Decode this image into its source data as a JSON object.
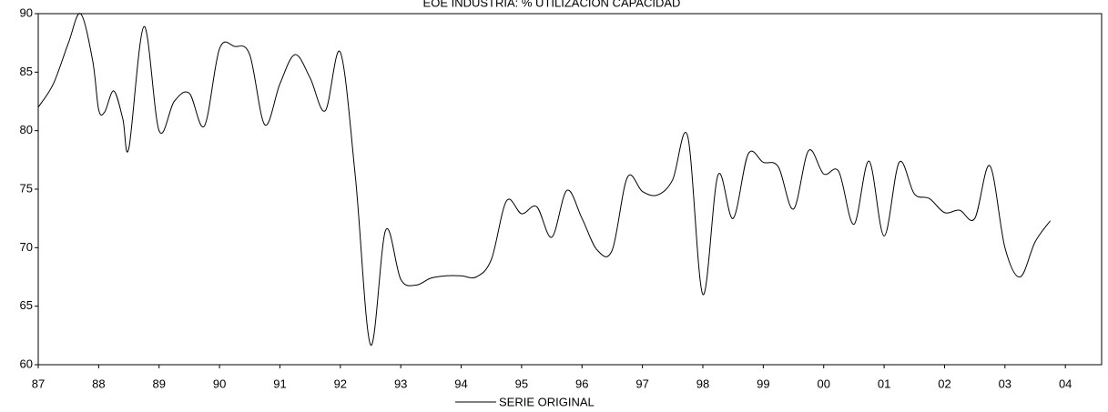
{
  "chart_data": {
    "type": "line",
    "title": "EOE INDUSTRIA: % UTILIZACION CAPACIDAD",
    "x": [
      1987,
      1987.25,
      1987.5,
      1987.7,
      1987.9,
      1988,
      1988.1,
      1988.25,
      1988.4,
      1988.5,
      1988.75,
      1989,
      1989.25,
      1989.5,
      1989.75,
      1990,
      1990.25,
      1990.5,
      1990.75,
      1991,
      1991.25,
      1991.5,
      1991.75,
      1992,
      1992.25,
      1992.5,
      1992.75,
      1993,
      1993.25,
      1993.5,
      1993.75,
      1994,
      1994.25,
      1994.5,
      1994.75,
      1995,
      1995.25,
      1995.5,
      1995.75,
      1996,
      1996.25,
      1996.5,
      1996.75,
      1997,
      1997.25,
      1997.5,
      1997.75,
      1998,
      1998.25,
      1998.5,
      1998.75,
      1999,
      1999.25,
      1999.5,
      1999.75,
      2000,
      2000.25,
      2000.5,
      2000.75,
      2001,
      2001.25,
      2001.5,
      2001.75,
      2002,
      2002.25,
      2002.5,
      2002.75,
      2003,
      2003.25,
      2003.5,
      2003.75
    ],
    "series": [
      {
        "name": "SERIE ORIGINAL",
        "color": "#000000",
        "values": [
          82,
          84,
          87.5,
          90,
          86,
          81.8,
          81.6,
          83.4,
          81,
          78.5,
          88.9,
          80,
          82.5,
          83.2,
          80.4,
          87,
          87.2,
          86.5,
          80.5,
          84,
          86.5,
          84.5,
          81.7,
          86.7,
          76,
          61.7,
          71.5,
          67.3,
          66.8,
          67.4,
          67.6,
          67.6,
          67.5,
          69,
          74,
          72.9,
          73.5,
          70.9,
          74.9,
          72.5,
          69.8,
          69.8,
          76,
          74.8,
          74.5,
          75.8,
          79.5,
          66,
          76.2,
          72.5,
          78,
          77.3,
          76.9,
          73.3,
          78.3,
          76.3,
          76.5,
          72,
          77.4,
          71,
          77.3,
          74.6,
          74.2,
          73,
          73.2,
          72.5,
          77,
          70,
          67.5,
          70.5,
          72.3
        ]
      }
    ],
    "xlim": [
      1987,
      2004.6
    ],
    "xticks": [
      {
        "value": 1987,
        "label": "87"
      },
      {
        "value": 1988,
        "label": "88"
      },
      {
        "value": 1989,
        "label": "89"
      },
      {
        "value": 1990,
        "label": "90"
      },
      {
        "value": 1991,
        "label": "91"
      },
      {
        "value": 1992,
        "label": "92"
      },
      {
        "value": 1993,
        "label": "93"
      },
      {
        "value": 1994,
        "label": "94"
      },
      {
        "value": 1995,
        "label": "95"
      },
      {
        "value": 1996,
        "label": "96"
      },
      {
        "value": 1997,
        "label": "97"
      },
      {
        "value": 1998,
        "label": "98"
      },
      {
        "value": 1999,
        "label": "99"
      },
      {
        "value": 2000,
        "label": "00"
      },
      {
        "value": 2001,
        "label": "01"
      },
      {
        "value": 2002,
        "label": "02"
      },
      {
        "value": 2003,
        "label": "03"
      },
      {
        "value": 2004,
        "label": "04"
      }
    ],
    "ylim": [
      60,
      90
    ],
    "yticks": [
      60,
      65,
      70,
      75,
      80,
      85,
      90
    ],
    "legend": "bottom"
  }
}
